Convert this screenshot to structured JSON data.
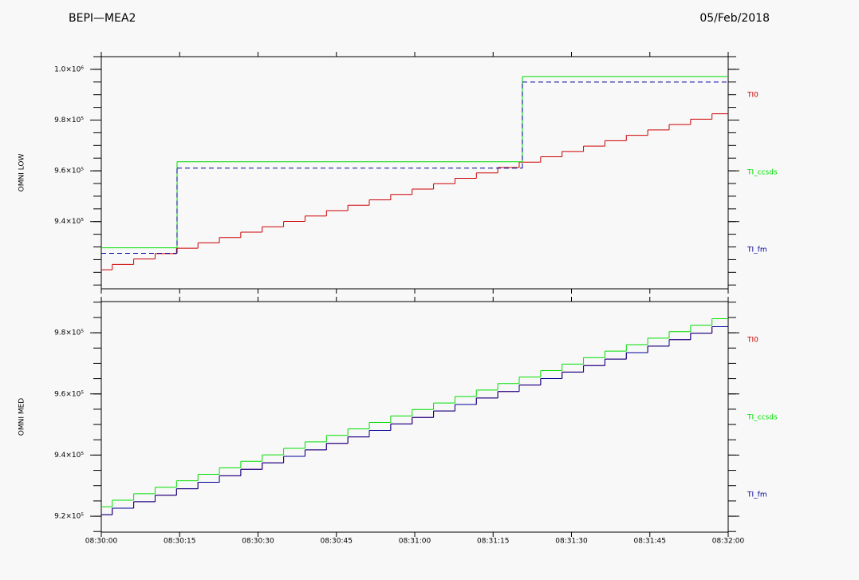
{
  "header": {
    "title": "BEPI—MEA2",
    "date": "05/Feb/2018"
  },
  "chart_data": [
    {
      "type": "step",
      "ylabel": "OMNI LOW",
      "xlim": [
        0,
        120
      ],
      "xticks": [
        0,
        15,
        30,
        45,
        60,
        75,
        90,
        105,
        120
      ],
      "ylim": [
        913500,
        1005000
      ],
      "yticks": [
        {
          "value": 940000,
          "label": "9.4×10⁵"
        },
        {
          "value": 960000,
          "label": "9.6×10⁵"
        },
        {
          "value": 980000,
          "label": "9.8×10⁵"
        },
        {
          "value": 1000000,
          "label": "1.0×10⁶"
        }
      ],
      "series": [
        {
          "name": "TI0",
          "color": "#cc0000",
          "dash": false,
          "x": [
            0,
            2.1,
            6.2,
            10.3,
            14.4,
            18.5,
            22.6,
            26.7,
            30.8,
            34.9,
            39,
            43.1,
            47.2,
            51.3,
            55.4,
            59.5,
            63.6,
            67.7,
            71.8,
            75.9,
            80,
            84.1,
            88.2,
            92.3,
            96.4,
            100.5,
            104.6,
            108.7,
            112.8,
            116.9
          ],
          "values": [
            921000,
            923120,
            925240,
            927360,
            929480,
            931600,
            933720,
            935840,
            937960,
            940080,
            942200,
            944320,
            946440,
            948560,
            950680,
            952800,
            954920,
            957040,
            959160,
            961280,
            963400,
            965520,
            967640,
            969760,
            971880,
            974000,
            976120,
            978240,
            980360,
            982480
          ]
        },
        {
          "name": "TI_ccsds",
          "color": "#00dd00",
          "dash": false,
          "x": [
            0,
            14.5,
            80.6
          ],
          "values": [
            929670,
            963580,
            997170
          ]
        },
        {
          "name": "TI_fm",
          "color": "#000099",
          "dash": true,
          "x": [
            0,
            14.5,
            80.6
          ],
          "values": [
            927480,
            961070,
            994980
          ]
        }
      ]
    },
    {
      "type": "step",
      "ylabel": "OMNI MED",
      "xlim": [
        0,
        120
      ],
      "xticks": [
        {
          "value": 0,
          "label": "08:30:00"
        },
        {
          "value": 15,
          "label": "08:30:15"
        },
        {
          "value": 30,
          "label": "08:30:30"
        },
        {
          "value": 45,
          "label": "08:30:45"
        },
        {
          "value": 60,
          "label": "08:31:00"
        },
        {
          "value": 75,
          "label": "08:31:15"
        },
        {
          "value": 90,
          "label": "08:31:30"
        },
        {
          "value": 105,
          "label": "08:31:45"
        },
        {
          "value": 120,
          "label": "08:32:00"
        }
      ],
      "ylim": [
        914800,
        990200
      ],
      "yticks": [
        {
          "value": 920000,
          "label": "9.2×10⁵"
        },
        {
          "value": 940000,
          "label": "9.4×10⁵"
        },
        {
          "value": 960000,
          "label": "9.6×10⁵"
        },
        {
          "value": 980000,
          "label": "9.8×10⁵"
        }
      ],
      "series": [
        {
          "name": "TI0",
          "color": "#cc0000",
          "dash": false,
          "x": [
            0,
            2.1,
            6.2,
            10.3,
            14.4,
            18.5,
            22.6,
            26.7,
            30.8,
            34.9,
            39,
            43.1,
            47.2,
            51.3,
            55.4,
            59.5,
            63.6,
            67.7,
            71.8,
            75.9,
            80,
            84.1,
            88.2,
            92.3,
            96.4,
            100.5,
            104.6,
            108.7,
            112.8,
            116.9
          ],
          "values": [
            920500,
            922620,
            924740,
            926860,
            928980,
            931100,
            933220,
            935340,
            937460,
            939580,
            941700,
            943820,
            945940,
            948060,
            950180,
            952300,
            954420,
            956540,
            958660,
            960780,
            962900,
            965020,
            967140,
            969260,
            971380,
            973500,
            975620,
            977740,
            979860,
            981980
          ]
        },
        {
          "name": "TI_ccsds",
          "color": "#00dd00",
          "dash": false,
          "x": [
            0,
            2.1,
            6.2,
            10.3,
            14.4,
            18.5,
            22.6,
            26.7,
            30.8,
            34.9,
            39,
            43.1,
            47.2,
            51.3,
            55.4,
            59.5,
            63.6,
            67.7,
            71.8,
            75.9,
            80,
            84.1,
            88.2,
            92.3,
            96.4,
            100.5,
            104.6,
            108.7,
            112.8,
            116.9
          ],
          "values": [
            923100,
            925220,
            927340,
            929460,
            931580,
            933700,
            935820,
            937940,
            940060,
            942180,
            944300,
            946420,
            948540,
            950660,
            952780,
            954900,
            957020,
            959140,
            961260,
            963380,
            965500,
            967620,
            969740,
            971860,
            973980,
            976100,
            978220,
            980340,
            982460,
            984580
          ]
        },
        {
          "name": "TI_fm",
          "color": "#000099",
          "dash": false,
          "x": [
            0,
            2.1,
            6.2,
            10.3,
            14.4,
            18.5,
            22.6,
            26.7,
            30.8,
            34.9,
            39,
            43.1,
            47.2,
            51.3,
            55.4,
            59.5,
            63.6,
            67.7,
            71.8,
            75.9,
            80,
            84.1,
            88.2,
            92.3,
            96.4,
            100.5,
            104.6,
            108.7,
            112.8,
            116.9
          ],
          "values": [
            920500,
            922620,
            924740,
            926860,
            928980,
            931100,
            933220,
            935340,
            937460,
            939580,
            941700,
            943820,
            945940,
            948060,
            950180,
            952300,
            954420,
            956540,
            958660,
            960780,
            962900,
            965020,
            967140,
            969260,
            971380,
            973500,
            975620,
            977740,
            979860,
            981980
          ]
        }
      ]
    }
  ]
}
